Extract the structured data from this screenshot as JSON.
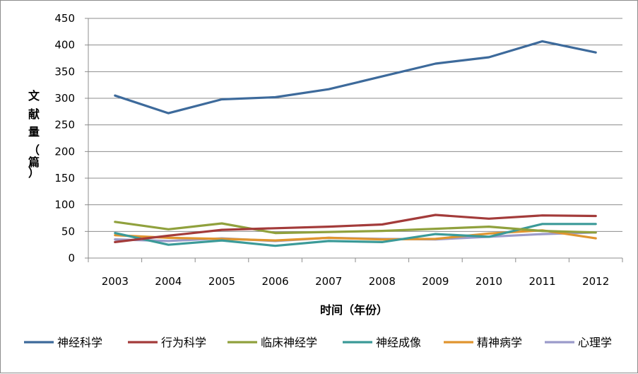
{
  "chart_data": {
    "type": "line",
    "title": "",
    "xlabel": "时间（年份）",
    "ylabel_chars": [
      "文",
      "献",
      "量",
      "（",
      "篇",
      "）"
    ],
    "ylim": [
      0,
      450
    ],
    "yticks": [
      0,
      50,
      100,
      150,
      200,
      250,
      300,
      350,
      400,
      450
    ],
    "categories": [
      "2003",
      "2004",
      "2005",
      "2006",
      "2007",
      "2008",
      "2009",
      "2010",
      "2011",
      "2012"
    ],
    "grid": true,
    "legend_position": "bottom",
    "series": [
      {
        "name": "神经科学",
        "color": "#3d6a9b",
        "values": [
          305,
          272,
          298,
          302,
          317,
          341,
          365,
          377,
          407,
          386
        ]
      },
      {
        "name": "行为科学",
        "color": "#a33b3a",
        "values": [
          30,
          42,
          53,
          56,
          59,
          63,
          81,
          74,
          80,
          79
        ]
      },
      {
        "name": "临床神经学",
        "color": "#90a13d",
        "values": [
          68,
          54,
          65,
          47,
          49,
          51,
          55,
          59,
          51,
          48
        ]
      },
      {
        "name": "神经成像",
        "color": "#3b9a98",
        "values": [
          47,
          25,
          33,
          23,
          32,
          30,
          45,
          40,
          64,
          64
        ]
      },
      {
        "name": "精神病学",
        "color": "#e0952f",
        "values": [
          43,
          38,
          36,
          33,
          38,
          35,
          36,
          46,
          52,
          37
        ]
      },
      {
        "name": "心理学",
        "color": "#9b9bca",
        "values": [
          35,
          32,
          37,
          32,
          38,
          36,
          35,
          40,
          45,
          48
        ]
      }
    ]
  }
}
